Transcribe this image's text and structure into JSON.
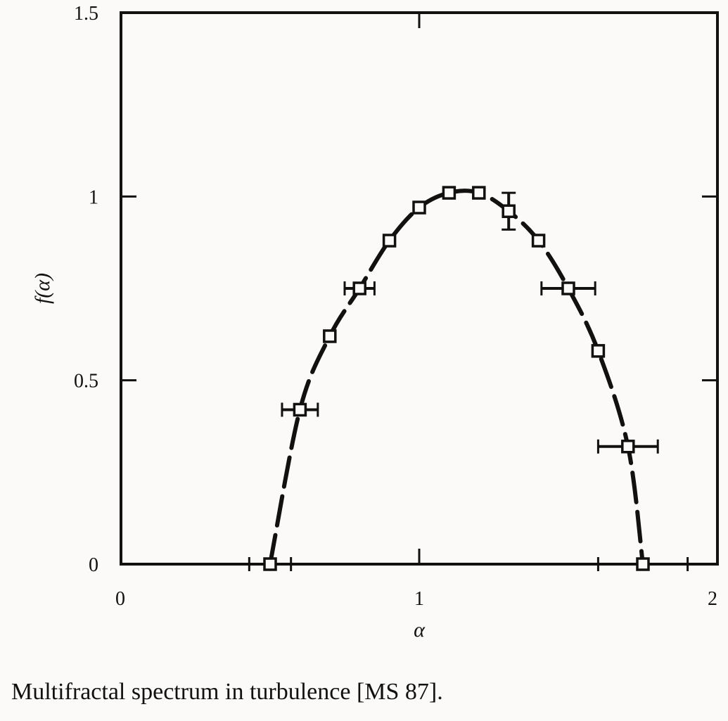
{
  "chart_data": {
    "type": "scatter",
    "title": "",
    "xlabel": "α",
    "ylabel": "f(α)",
    "xlim": [
      0,
      2
    ],
    "ylim": [
      0,
      1.5
    ],
    "x_ticks": [
      0,
      1,
      2
    ],
    "x_tick_labels": [
      "0",
      "1",
      "2"
    ],
    "y_ticks": [
      0,
      0.5,
      1,
      1.5
    ],
    "y_tick_labels": [
      "0",
      "0.5",
      "1",
      "1.5"
    ],
    "grid": false,
    "legend": "none",
    "series": [
      {
        "marker": "open-square",
        "points": [
          {
            "x": 0.5,
            "y": 0.0,
            "xerr": 0.07
          },
          {
            "x": 0.6,
            "y": 0.42,
            "xerr": 0.06
          },
          {
            "x": 0.7,
            "y": 0.62
          },
          {
            "x": 0.8,
            "y": 0.75,
            "xerr": 0.05
          },
          {
            "x": 0.9,
            "y": 0.88
          },
          {
            "x": 1.0,
            "y": 0.97
          },
          {
            "x": 1.1,
            "y": 1.01
          },
          {
            "x": 1.2,
            "y": 1.01
          },
          {
            "x": 1.3,
            "y": 0.96,
            "yerr": 0.05
          },
          {
            "x": 1.4,
            "y": 0.88
          },
          {
            "x": 1.5,
            "y": 0.75,
            "xerr": 0.09
          },
          {
            "x": 1.6,
            "y": 0.58
          },
          {
            "x": 1.7,
            "y": 0.32,
            "xerr": 0.1
          },
          {
            "x": 1.75,
            "y": 0.0,
            "xerr": 0.15
          }
        ]
      }
    ],
    "fit_curve": {
      "style": "dashed",
      "x": [
        0.5,
        0.6,
        0.7,
        0.8,
        0.9,
        1.0,
        1.1,
        1.2,
        1.3,
        1.4,
        1.5,
        1.6,
        1.7,
        1.75
      ],
      "y": [
        0.0,
        0.42,
        0.62,
        0.75,
        0.88,
        0.97,
        1.01,
        1.01,
        0.96,
        0.88,
        0.75,
        0.58,
        0.32,
        0.0
      ]
    },
    "colors": {
      "ink": "#111111",
      "background": "#fbfaf8"
    }
  },
  "caption": "Multifractal spectrum in turbulence [MS 87]."
}
